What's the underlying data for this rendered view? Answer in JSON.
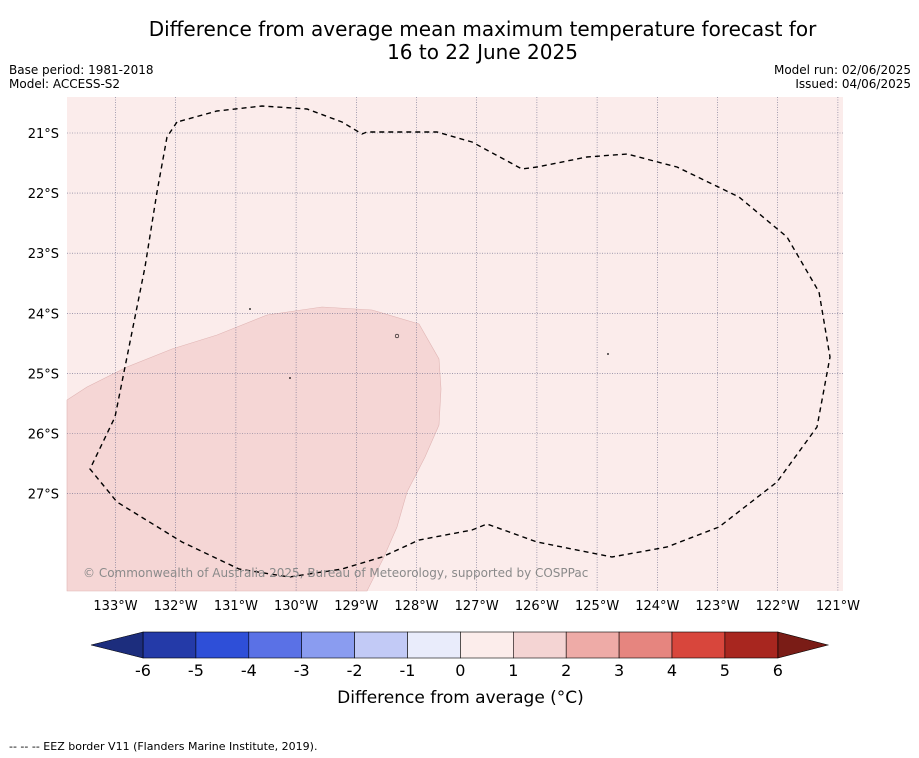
{
  "title_line1": "Difference from average mean maximum temperature forecast for",
  "title_line2": "16 to 22 June 2025",
  "base_period": "Base period: 1981-2018",
  "model": "Model: ACCESS-S2",
  "model_run": "Model run: 02/06/2025",
  "issued": "Issued: 04/06/2025",
  "map": {
    "lon_ticks": [
      "133°W",
      "132°W",
      "131°W",
      "130°W",
      "129°W",
      "128°W",
      "127°W",
      "126°W",
      "125°W",
      "124°W",
      "123°W",
      "122°W",
      "121°W"
    ],
    "lat_ticks": [
      "21°S",
      "22°S",
      "23°S",
      "24°S",
      "25°S",
      "26°S",
      "27°S"
    ],
    "background_color": "#fbeceb",
    "warm_region_color": "#f5d6d5",
    "copyright": "© Commonwealth of Australia 2025, Bureau of Meteorology, supported by COSPPac"
  },
  "colorbar": {
    "tick_labels": [
      "-6",
      "-5",
      "-4",
      "-3",
      "-2",
      "-1",
      "0",
      "1",
      "2",
      "3",
      "4",
      "5",
      "6"
    ],
    "colors": [
      "#243aa8",
      "#2e4fd8",
      "#5a71e6",
      "#8a9cf0",
      "#c2caf6",
      "#e9ecfb",
      "#fcedeb",
      "#f4d4d3",
      "#eeaba7",
      "#e6857f",
      "#d8463c",
      "#a8261f"
    ],
    "under_color": "#1c2d7d",
    "over_color": "#7a1c16",
    "label": "Difference from average ($^\\circ$C)",
    "label_display": "Difference from average (°C)"
  },
  "footer": "--  --  -- EEZ border V11 (Flanders Marine Institute, 2019)."
}
